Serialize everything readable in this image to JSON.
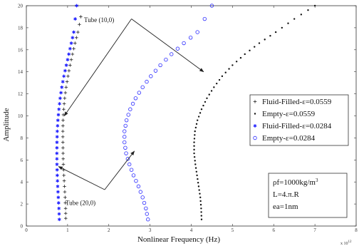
{
  "chart_data": {
    "type": "scatter",
    "title": "",
    "xlabel": "Nonlinear Frequency (Hz)",
    "ylabel": "Amplitude",
    "x_exponent": "x 10",
    "x_exponent_power": "12",
    "xlim": [
      0,
      8
    ],
    "ylim": [
      0,
      20
    ],
    "xticks": [
      "0",
      "1",
      "2",
      "3",
      "4",
      "5",
      "6",
      "7",
      "8"
    ],
    "yticks": [
      "0",
      "2",
      "4",
      "6",
      "8",
      "10",
      "12",
      "14",
      "16",
      "18",
      "20"
    ],
    "grid": false,
    "legend_position": "right",
    "series": [
      {
        "name": "Fluid-Filled-ε=0.0559",
        "marker": "plus",
        "color": "#222222",
        "x": [
          0.955,
          0.952,
          0.94,
          0.925,
          0.91,
          0.898,
          0.89,
          0.885,
          0.884,
          0.89,
          0.905,
          0.93,
          0.965,
          1.01,
          1.06,
          1.12,
          1.18,
          1.25,
          1.32
        ],
        "y": [
          0.7,
          1.6,
          2.6,
          3.6,
          4.6,
          5.6,
          6.6,
          7.6,
          8.6,
          9.6,
          10.6,
          11.6,
          12.6,
          13.6,
          14.6,
          15.6,
          16.6,
          17.6,
          19.0
        ]
      },
      {
        "name": "Empty-ε=0.0559",
        "marker": "dot",
        "color": "#111111",
        "x": [
          4.25,
          4.24,
          4.22,
          4.18,
          4.14,
          4.1,
          4.07,
          4.07,
          4.09,
          4.15,
          4.25,
          4.38,
          4.55,
          4.75,
          5.0,
          5.3,
          5.65,
          6.05,
          6.5,
          7.0
        ],
        "y": [
          0.6,
          1.6,
          2.6,
          3.6,
          4.6,
          5.6,
          6.6,
          7.6,
          8.6,
          9.6,
          10.6,
          11.6,
          12.6,
          13.6,
          14.6,
          15.6,
          16.6,
          17.6,
          18.8,
          20.0
        ]
      },
      {
        "name": "Fluid-Filled-ε=0.0284",
        "marker": "star",
        "color": "#1d1dff",
        "x": [
          0.8,
          0.79,
          0.775,
          0.76,
          0.75,
          0.742,
          0.74,
          0.742,
          0.75,
          0.765,
          0.79,
          0.82,
          0.86,
          0.91,
          0.97,
          1.03,
          1.09,
          1.15,
          1.22
        ],
        "y": [
          0.6,
          1.6,
          2.6,
          3.6,
          4.6,
          5.6,
          6.6,
          7.6,
          8.6,
          9.6,
          10.6,
          11.6,
          12.6,
          13.6,
          14.6,
          15.6,
          16.6,
          17.6,
          20.0
        ]
      },
      {
        "name": "Empty-ε=0.0284",
        "marker": "circle",
        "color": "#2a2aff",
        "x": [
          2.95,
          2.9,
          2.82,
          2.72,
          2.6,
          2.5,
          2.42,
          2.38,
          2.38,
          2.43,
          2.52,
          2.65,
          2.82,
          3.02,
          3.25,
          3.52,
          3.82,
          4.15,
          4.5
        ],
        "y": [
          0.6,
          1.6,
          2.6,
          3.6,
          4.6,
          5.6,
          6.6,
          7.6,
          8.6,
          9.6,
          10.6,
          11.6,
          12.6,
          13.6,
          14.6,
          15.6,
          16.6,
          17.6,
          20.0
        ]
      }
    ],
    "annotations": [
      {
        "text": "Tube (10,0)",
        "x": 1.4,
        "y": 18.5
      },
      {
        "text": "Tube (20,0)",
        "x": 0.95,
        "y": 1.9
      }
    ],
    "arrows": [
      {
        "from": [
          2.55,
          18.8
        ],
        "to": [
          0.92,
          10.0
        ]
      },
      {
        "from": [
          2.55,
          18.8
        ],
        "to": [
          4.3,
          14.0
        ]
      },
      {
        "from": [
          1.9,
          3.3
        ],
        "to": [
          0.78,
          5.4
        ]
      },
      {
        "from": [
          1.9,
          3.3
        ],
        "to": [
          2.62,
          6.8
        ]
      }
    ],
    "parameters": [
      "ρf=1000kg/m",
      "L=4.π.R",
      "ea=1nm"
    ],
    "parameter_superscript": "3"
  }
}
